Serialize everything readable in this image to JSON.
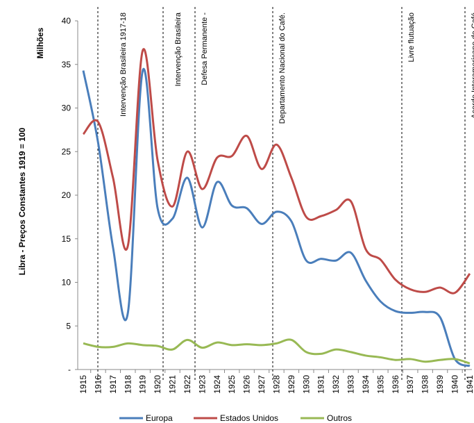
{
  "chart_data": {
    "type": "line",
    "y_label": "Libra - Preços Constantes 1919 = 100",
    "y_unit": "Milhões",
    "categories": [
      "1915",
      "1916",
      "1917",
      "1918",
      "1919",
      "1920",
      "1921",
      "1922",
      "1923",
      "1924",
      "1925",
      "1926",
      "1927",
      "1928",
      "1929",
      "1930",
      "1931",
      "1932",
      "1933",
      "1934",
      "1935",
      "1936",
      "1937",
      "1938",
      "1939",
      "1940",
      "1941"
    ],
    "series": [
      {
        "name": "Europa",
        "color": "#4a7ebb",
        "values": [
          34.3,
          26,
          14,
          6.5,
          34.3,
          18.5,
          17.3,
          22,
          16.3,
          21.5,
          18.8,
          18.5,
          16.7,
          18.1,
          17,
          12.5,
          12.7,
          12.5,
          13.4,
          10.2,
          7.8,
          6.7,
          6.5,
          6.6,
          6,
          1.2,
          0.4
        ]
      },
      {
        "name": "Estados Unidos",
        "color": "#be4b48",
        "values": [
          27,
          28.4,
          22,
          14.2,
          36.6,
          24,
          18.7,
          25,
          20.7,
          24.3,
          24.5,
          26.8,
          23,
          25.8,
          22,
          17.5,
          17.6,
          18.3,
          19.3,
          13.8,
          12.6,
          10.3,
          9.2,
          8.9,
          9.4,
          8.8,
          11
        ]
      },
      {
        "name": "Outros",
        "color": "#98b954",
        "values": [
          3,
          2.6,
          2.6,
          3,
          2.8,
          2.7,
          2.3,
          3.4,
          2.5,
          3.1,
          2.8,
          2.9,
          2.8,
          3,
          3.4,
          2,
          1.8,
          2.3,
          2,
          1.6,
          1.4,
          1.1,
          1.2,
          0.9,
          1.1,
          1.2,
          0.7
        ]
      }
    ],
    "ylim": [
      0,
      40
    ],
    "yticks": [
      {
        "value": 0,
        "label": "-"
      },
      5,
      10,
      15,
      20,
      25,
      30,
      35,
      40
    ],
    "annotations": [
      "Intervenção Brasileira 1917-18",
      "Intervenção Brasileira",
      "Defesa Permanente -",
      "Departamento Nacional do Café.",
      "Livre flutuação",
      "Acordo Interamericano do Café"
    ],
    "legend": "bottom"
  }
}
